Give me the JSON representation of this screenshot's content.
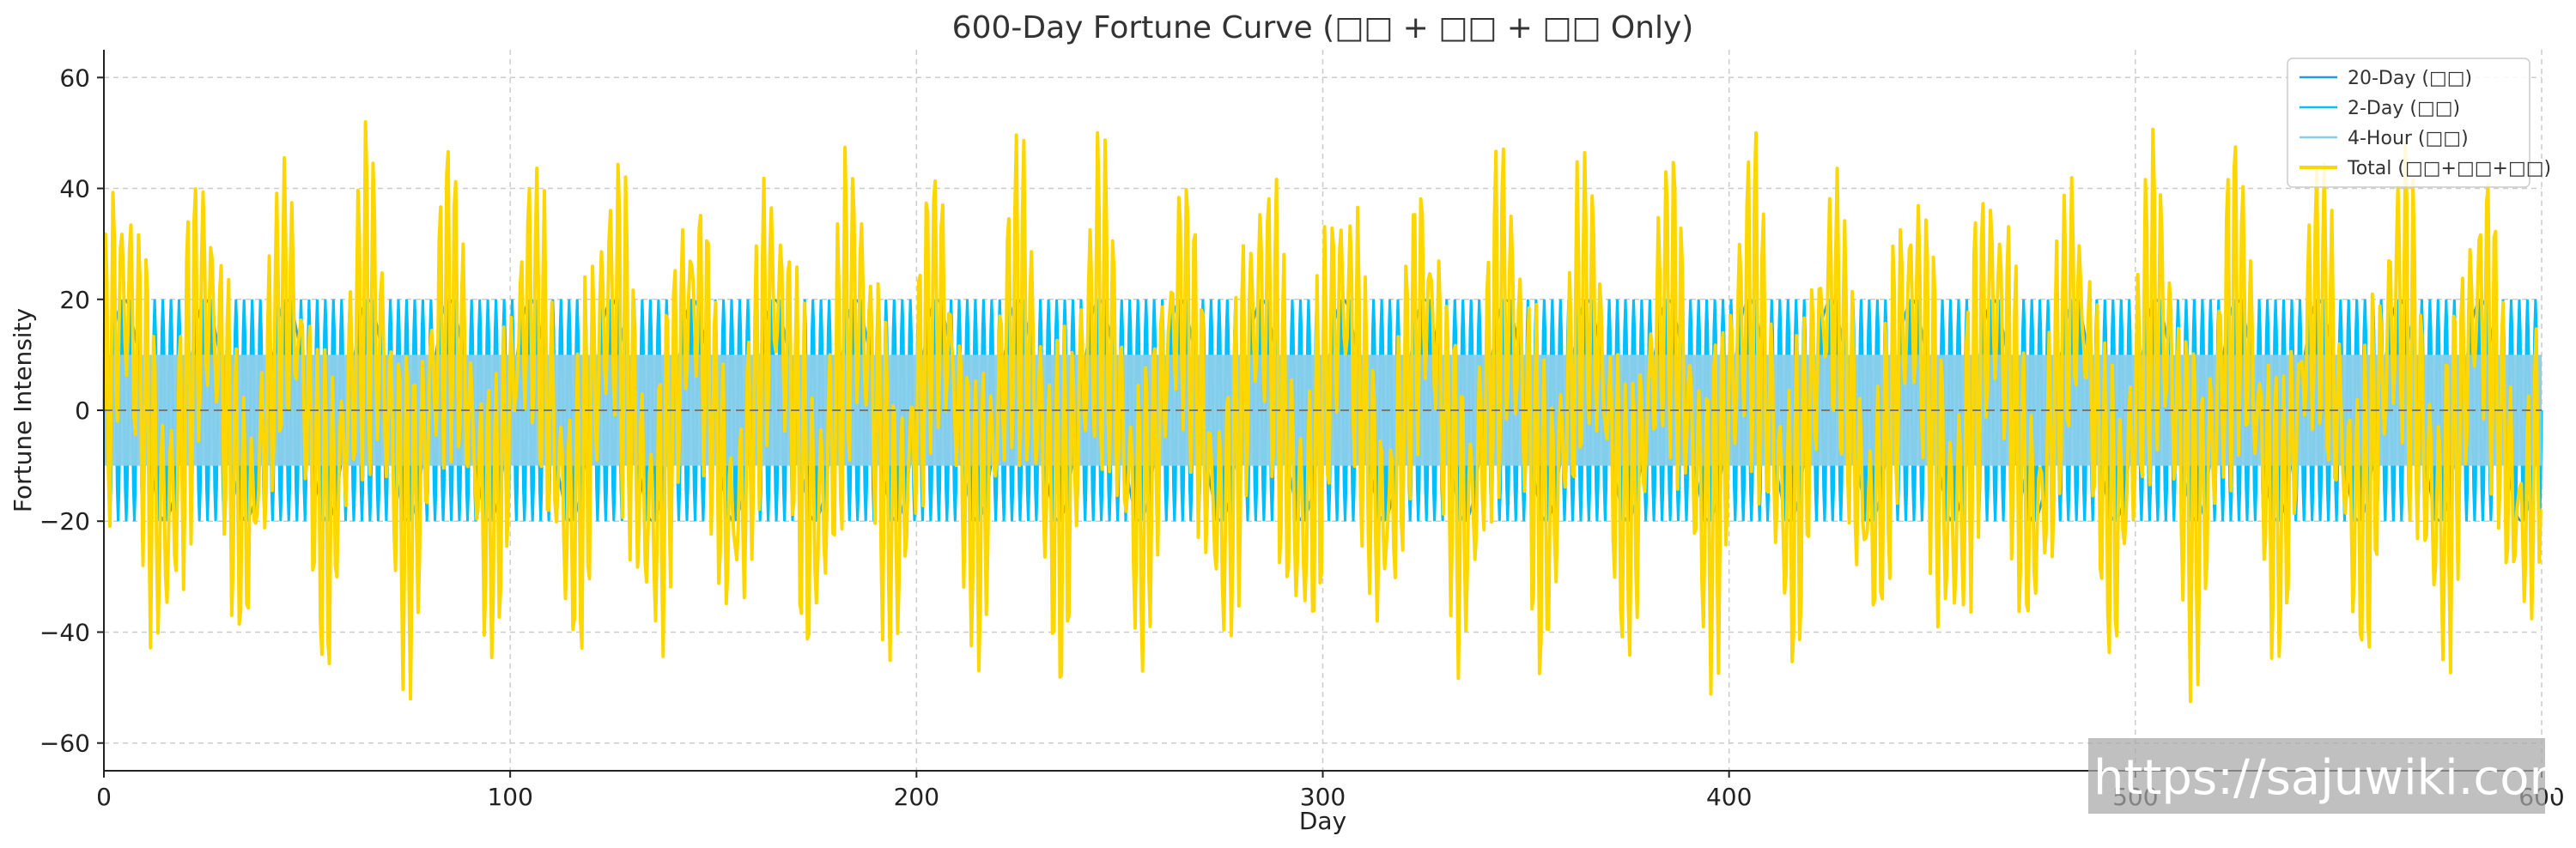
{
  "chart_data": {
    "type": "line",
    "title": "600-Day Fortune Curve (□□ + □□ + □□ Only)",
    "xlabel": "Day",
    "ylabel": "Fortune Intensity",
    "xlim": [
      0,
      600
    ],
    "ylim": [
      -65,
      65
    ],
    "xticks": [
      0,
      100,
      200,
      300,
      400,
      500,
      600
    ],
    "yticks": [
      -60,
      -40,
      -20,
      0,
      20,
      40,
      60
    ],
    "grid": true,
    "zero_line": true,
    "legend_position": "top-right",
    "series": [
      {
        "name": "20-Day (□□)",
        "color": "#1f9be8",
        "period_days": 20,
        "amplitude": 20
      },
      {
        "name": "2-Day (□□)",
        "color": "#00bfff",
        "period_days": 2,
        "amplitude": 20
      },
      {
        "name": "4-Hour (□□)",
        "color": "#87ceeb",
        "period_days": 0.1667,
        "amplitude": 10
      },
      {
        "name": "Total (□□+□□+□□)",
        "color": "#ffd700",
        "composition": "sum of the three series",
        "range": [
          -60,
          60
        ]
      }
    ]
  },
  "watermark": "https://sajuwiki.com"
}
